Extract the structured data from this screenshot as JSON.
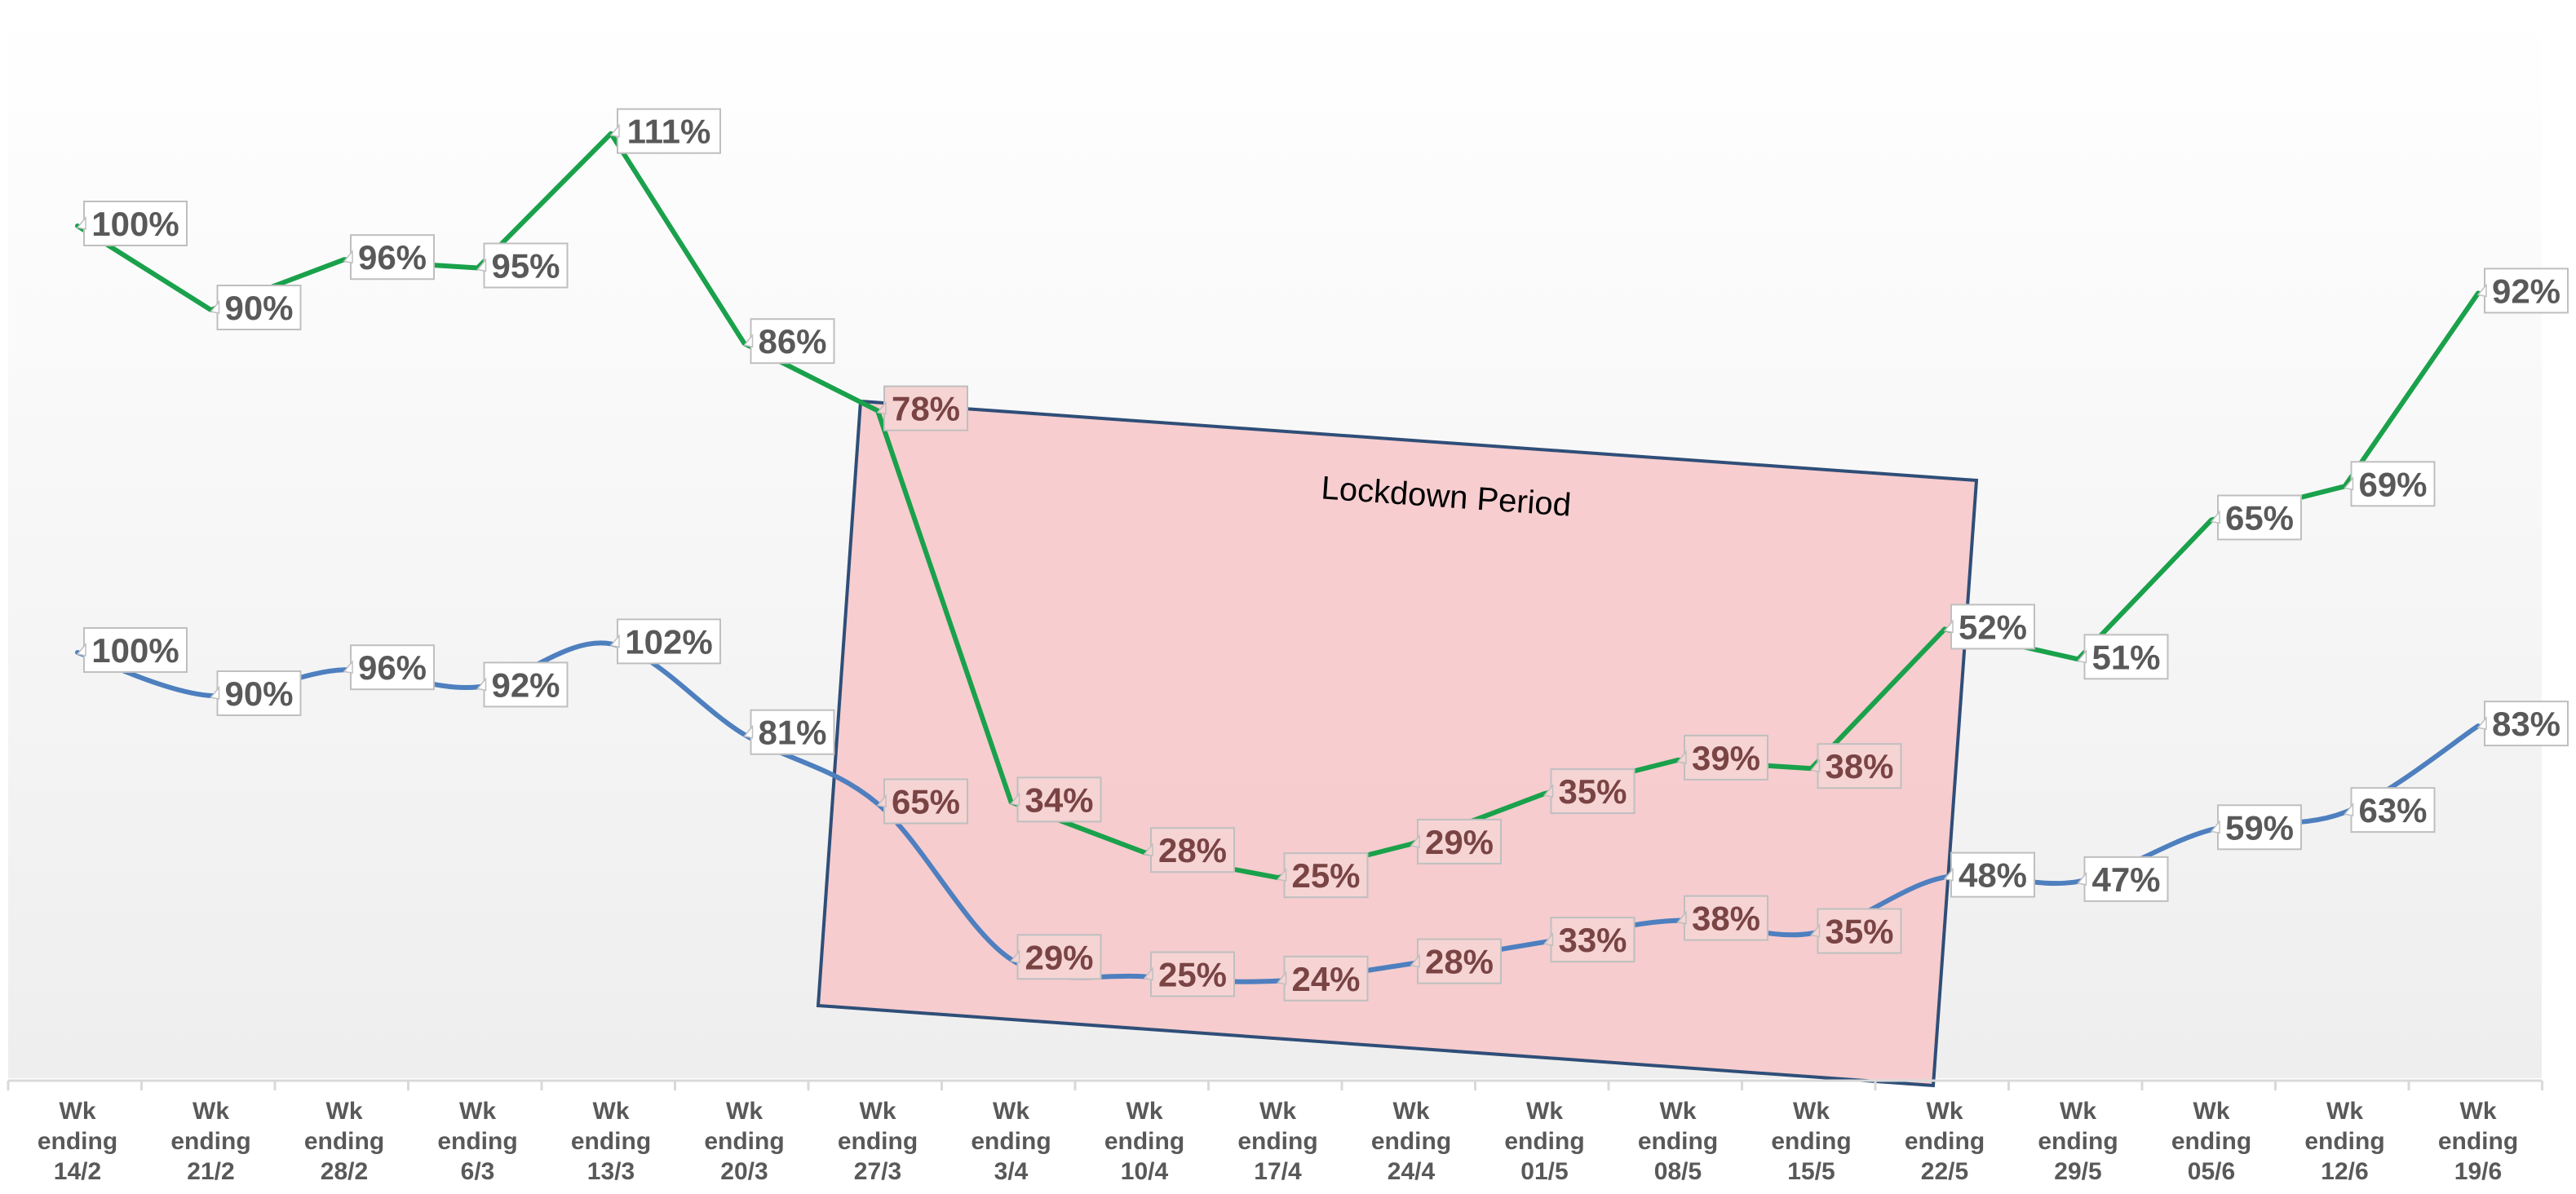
{
  "colors": {
    "series_green": "#1aa14b",
    "series_blue": "#4e7fbf",
    "label_text": "#595959",
    "label_text_inside": "#7a4444",
    "label_border": "#bfbfbf",
    "label_fill": "#ffffff",
    "label_fill_inside": "#f6d4d4",
    "lockdown_fill": "#f7c6c8",
    "lockdown_stroke": "#2f4e78",
    "axis_line": "#d9d9d9"
  },
  "chart_data": {
    "type": "line",
    "categories": [
      "Wk ending 14/2",
      "Wk ending 21/2",
      "Wk ending 28/2",
      "Wk ending 6/3",
      "Wk ending 13/3",
      "Wk ending 20/3",
      "Wk ending 27/3",
      "Wk ending 3/4",
      "Wk ending 10/4",
      "Wk ending 17/4",
      "Wk ending 24/4",
      "Wk ending 01/5",
      "Wk ending 08/5",
      "Wk ending 15/5",
      "Wk ending 22/5",
      "Wk ending 29/5",
      "Wk ending 05/6",
      "Wk ending 12/6",
      "Wk ending 19/6"
    ],
    "category_lines": [
      [
        "Wk",
        "ending",
        "14/2"
      ],
      [
        "Wk",
        "ending",
        "21/2"
      ],
      [
        "Wk",
        "ending",
        "28/2"
      ],
      [
        "Wk",
        "ending",
        "6/3"
      ],
      [
        "Wk",
        "ending",
        "13/3"
      ],
      [
        "Wk",
        "ending",
        "20/3"
      ],
      [
        "Wk",
        "ending",
        "27/3"
      ],
      [
        "Wk",
        "ending",
        "3/4"
      ],
      [
        "Wk",
        "ending",
        "10/4"
      ],
      [
        "Wk",
        "ending",
        "17/4"
      ],
      [
        "Wk",
        "ending",
        "24/4"
      ],
      [
        "Wk",
        "ending",
        "01/5"
      ],
      [
        "Wk",
        "ending",
        "08/5"
      ],
      [
        "Wk",
        "ending",
        "15/5"
      ],
      [
        "Wk",
        "ending",
        "22/5"
      ],
      [
        "Wk",
        "ending",
        "29/5"
      ],
      [
        "Wk",
        "ending",
        "05/6"
      ],
      [
        "Wk",
        "ending",
        "12/6"
      ],
      [
        "Wk",
        "ending",
        "19/6"
      ]
    ],
    "series": [
      {
        "key": "green",
        "values": [
          100,
          90,
          96,
          95,
          111,
          86,
          78,
          34,
          28,
          25,
          29,
          35,
          39,
          38,
          52,
          51,
          65,
          69,
          92
        ],
        "labels": [
          "100%",
          "90%",
          "96%",
          "95%",
          "111%",
          "86%",
          "78%",
          "34%",
          "28%",
          "25%",
          "29%",
          "35%",
          "39%",
          "38%",
          "52%",
          "51%",
          "65%",
          "69%",
          "92%"
        ]
      },
      {
        "key": "blue",
        "values": [
          100,
          90,
          96,
          92,
          102,
          81,
          65,
          29,
          25,
          24,
          28,
          33,
          38,
          35,
          48,
          47,
          59,
          63,
          83
        ],
        "labels": [
          "100%",
          "90%",
          "96%",
          "92%",
          "102%",
          "81%",
          "65%",
          "29%",
          "25%",
          "24%",
          "28%",
          "33%",
          "38%",
          "35%",
          "48%",
          "47%",
          "59%",
          "63%",
          "83%"
        ]
      }
    ],
    "title": "",
    "xlabel": "",
    "ylabel": "",
    "ylim": [
      0,
      111
    ],
    "grid": false,
    "legend": "none",
    "annotations": [
      {
        "text": "Lockdown Period",
        "start_category": "Wk ending 27/3",
        "end_category": "Wk ending 22/5"
      }
    ]
  }
}
